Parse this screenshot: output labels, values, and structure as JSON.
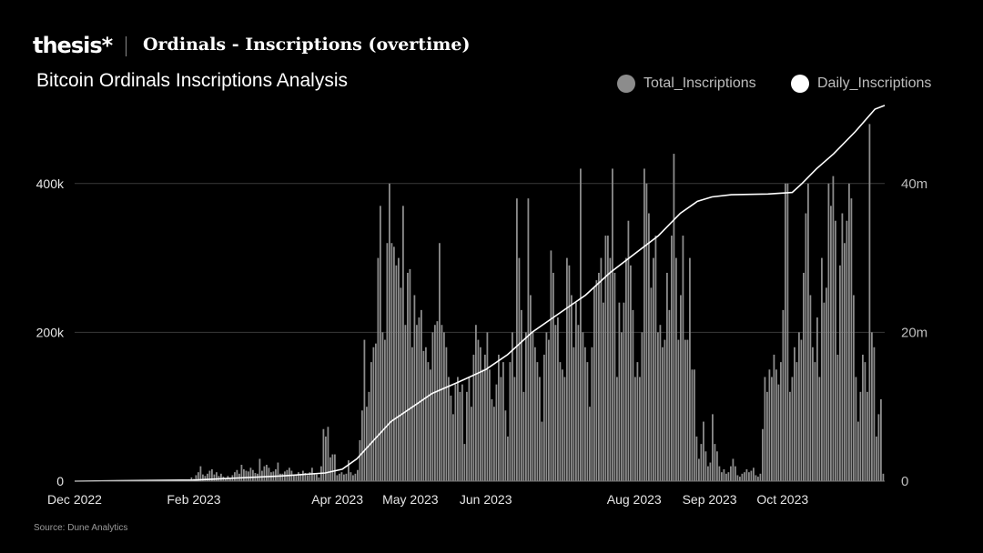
{
  "header": {
    "brand": "thesis*",
    "title": "Ordinals - Inscriptions (overtime)"
  },
  "colors": {
    "background": "#000000",
    "bars": "#8c8c8c",
    "line": "#ffffff",
    "grid": "#3a3a3a"
  },
  "source": "Source: Dune Analytics",
  "chart_data": {
    "type": "bar",
    "title": "Bitcoin Ordinals Inscriptions Analysis",
    "legend": {
      "placement": "top-right"
    },
    "x_ticks": [
      "Dec 2022",
      "Feb 2023",
      "Apr 2023",
      "May 2023",
      "Jun 2023",
      "Aug 2023",
      "Sep 2023",
      "Oct 2023"
    ],
    "y_left": {
      "ticks": [
        "0",
        "200k",
        "400k"
      ],
      "min": 0,
      "max": 500000
    },
    "y_right": {
      "ticks": [
        "0",
        "20m",
        "40m"
      ],
      "min": 0,
      "max": 50000000
    },
    "grid": true,
    "series": [
      {
        "name": "Total_Inscriptions",
        "kind": "bar",
        "axis": "left",
        "period": "2022-12-14 to 2023-11-12 (daily)",
        "values": [
          0,
          0,
          0,
          0,
          0,
          0,
          0,
          0,
          0,
          0,
          0,
          0,
          0,
          0,
          0,
          0,
          0,
          0,
          0,
          0,
          0,
          0,
          0,
          0,
          0,
          0,
          0,
          0,
          0,
          0,
          0,
          0,
          0,
          0,
          0,
          0,
          0,
          0,
          0,
          0,
          0,
          0,
          0,
          0,
          0,
          0,
          0,
          0,
          0,
          0,
          2000,
          5000,
          3000,
          8000,
          12000,
          20000,
          9000,
          7000,
          10000,
          14000,
          16000,
          9000,
          12000,
          7000,
          10000,
          6000,
          4000,
          7000,
          3000,
          8000,
          12000,
          15000,
          10000,
          22000,
          16000,
          14000,
          13000,
          18000,
          15000,
          11000,
          10000,
          30000,
          14000,
          20000,
          22000,
          18000,
          12000,
          13000,
          16000,
          25000,
          10000,
          10000,
          13000,
          15000,
          18000,
          14000,
          8000,
          9000,
          12000,
          10000,
          14000,
          11000,
          8000,
          12000,
          18000,
          10000,
          9000,
          5000,
          20000,
          70000,
          60000,
          73000,
          32000,
          36000,
          36000,
          8000,
          10000,
          12000,
          9000,
          10000,
          28000,
          12000,
          8000,
          10000,
          15000,
          55000,
          95000,
          190000,
          100000,
          120000,
          160000,
          180000,
          185000,
          300000,
          370000,
          200000,
          190000,
          320000,
          400000,
          320000,
          315000,
          290000,
          300000,
          260000,
          370000,
          210000,
          280000,
          285000,
          180000,
          250000,
          210000,
          220000,
          230000,
          175000,
          180000,
          160000,
          150000,
          200000,
          210000,
          215000,
          320000,
          210000,
          200000,
          180000,
          140000,
          115000,
          90000,
          130000,
          140000,
          120000,
          130000,
          50000,
          120000,
          140000,
          100000,
          170000,
          210000,
          190000,
          180000,
          150000,
          170000,
          200000,
          150000,
          110000,
          100000,
          130000,
          170000,
          140000,
          160000,
          95000,
          60000,
          160000,
          200000,
          140000,
          380000,
          300000,
          230000,
          120000,
          200000,
          380000,
          250000,
          200000,
          180000,
          160000,
          140000,
          80000,
          170000,
          200000,
          190000,
          310000,
          280000,
          210000,
          220000,
          160000,
          150000,
          140000,
          300000,
          290000,
          250000,
          180000,
          240000,
          210000,
          420000,
          200000,
          180000,
          160000,
          100000,
          180000,
          260000,
          270000,
          280000,
          300000,
          240000,
          330000,
          330000,
          300000,
          420000,
          280000,
          140000,
          240000,
          200000,
          240000,
          300000,
          350000,
          290000,
          230000,
          140000,
          160000,
          140000,
          200000,
          420000,
          400000,
          360000,
          260000,
          300000,
          330000,
          200000,
          210000,
          180000,
          190000,
          280000,
          230000,
          330000,
          440000,
          300000,
          190000,
          250000,
          330000,
          190000,
          190000,
          300000,
          150000,
          150000,
          60000,
          30000,
          50000,
          80000,
          40000,
          20000,
          25000,
          90000,
          50000,
          40000,
          20000,
          12000,
          16000,
          10000,
          12000,
          20000,
          30000,
          20000,
          8000,
          6000,
          10000,
          12000,
          16000,
          12000,
          14000,
          18000,
          8000,
          6000,
          10000,
          70000,
          140000,
          120000,
          150000,
          140000,
          170000,
          150000,
          130000,
          160000,
          230000,
          400000,
          400000,
          120000,
          140000,
          180000,
          160000,
          200000,
          190000,
          280000,
          360000,
          400000,
          250000,
          180000,
          160000,
          220000,
          140000,
          300000,
          240000,
          260000,
          400000,
          370000,
          410000,
          350000,
          170000,
          290000,
          360000,
          320000,
          350000,
          400000,
          380000,
          250000,
          140000,
          80000,
          120000,
          170000,
          160000,
          120000,
          480000,
          200000,
          180000,
          60000,
          90000,
          110000,
          10000
        ]
      },
      {
        "name": "Daily_Inscriptions",
        "kind": "line",
        "axis": "right",
        "x": [
          "2022-12-14",
          "2023-02-01",
          "2023-03-09",
          "2023-03-27",
          "2023-04-03",
          "2023-04-09",
          "2023-04-16",
          "2023-04-23",
          "2023-05-02",
          "2023-05-10",
          "2023-05-20",
          "2023-06-01",
          "2023-06-10",
          "2023-06-20",
          "2023-07-01",
          "2023-07-12",
          "2023-07-22",
          "2023-08-01",
          "2023-08-11",
          "2023-08-20",
          "2023-08-27",
          "2023-09-02",
          "2023-09-10",
          "2023-09-25",
          "2023-10-05",
          "2023-10-09",
          "2023-10-15",
          "2023-10-22",
          "2023-10-31",
          "2023-11-08",
          "2023-11-12"
        ],
        "values": [
          0,
          150000,
          700000,
          1100000,
          1600000,
          3000000,
          5500000,
          8000000,
          10000000,
          11800000,
          13200000,
          15000000,
          17000000,
          20000000,
          22500000,
          25000000,
          28000000,
          30500000,
          33000000,
          36000000,
          37600000,
          38200000,
          38500000,
          38600000,
          38800000,
          40000000,
          42000000,
          44000000,
          47000000,
          50000000,
          50500000
        ]
      }
    ]
  }
}
